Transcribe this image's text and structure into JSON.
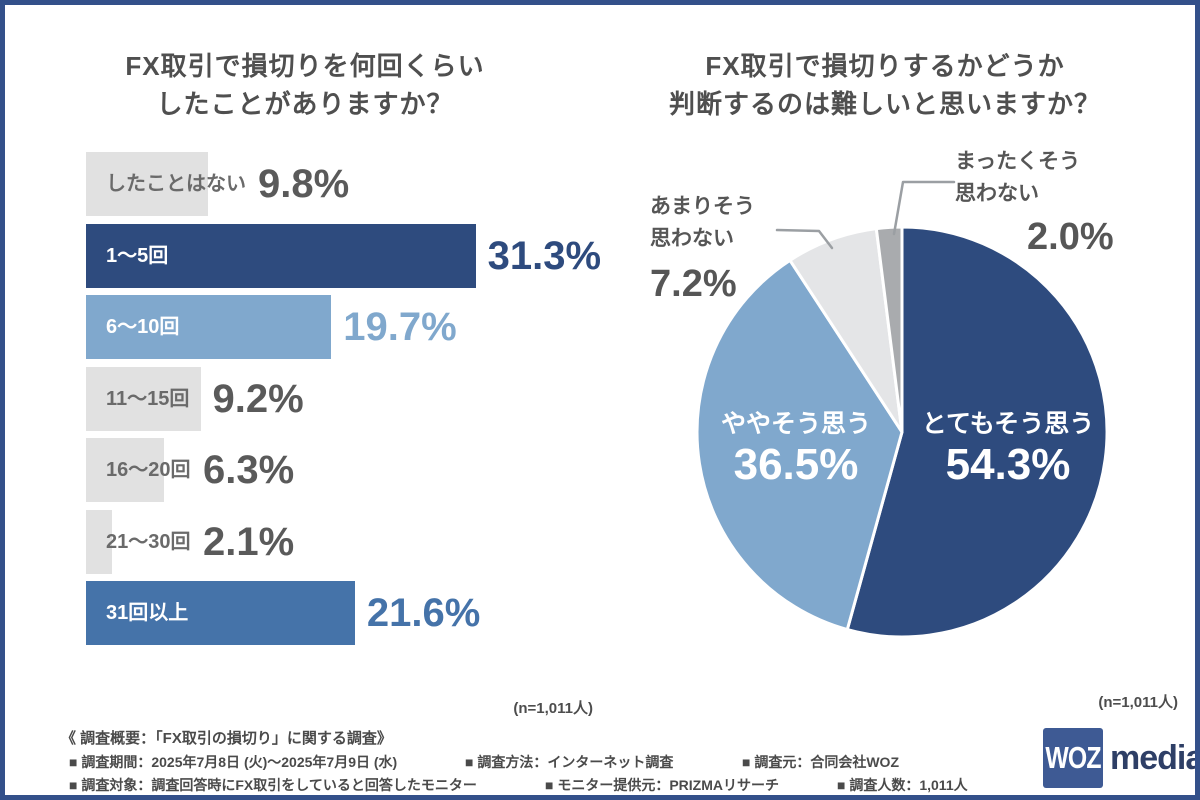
{
  "card": {
    "border_color": "#33508a",
    "background": "#ffffff"
  },
  "chart_data": [
    {
      "type": "bar",
      "orientation": "horizontal",
      "title_lines": [
        "FX取引で損切りを何回くらい",
        "したことがありますか？"
      ],
      "n_label": "(n=1,011人)",
      "unit": "%",
      "xlim": [
        0,
        40
      ],
      "bars": [
        {
          "label": "したことはない",
          "value": 9.8,
          "display": "9.8%",
          "bar_color": "#e1e1e1",
          "label_color": "#6a6a6a",
          "value_color": "#5a5a5a"
        },
        {
          "label": "1〜5回",
          "value": 31.3,
          "display": "31.3%",
          "bar_color": "#2e4b7e",
          "label_color": "#ffffff",
          "value_color": "#2e4b7e"
        },
        {
          "label": "6〜10回",
          "value": 19.7,
          "display": "19.7%",
          "bar_color": "#80a8cd",
          "label_color": "#ffffff",
          "value_color": "#80a8cd"
        },
        {
          "label": "11〜15回",
          "value": 9.2,
          "display": "9.2%",
          "bar_color": "#e1e1e1",
          "label_color": "#6a6a6a",
          "value_color": "#5a5a5a"
        },
        {
          "label": "16〜20回",
          "value": 6.3,
          "display": "6.3%",
          "bar_color": "#e1e1e1",
          "label_color": "#6a6a6a",
          "value_color": "#5a5a5a"
        },
        {
          "label": "21〜30回",
          "value": 2.1,
          "display": "2.1%",
          "bar_color": "#e1e1e1",
          "label_color": "#6a6a6a",
          "value_color": "#5a5a5a"
        },
        {
          "label": "31回以上",
          "value": 21.6,
          "display": "21.6%",
          "bar_color": "#4573a9",
          "label_color": "#ffffff",
          "value_color": "#4573a9"
        }
      ]
    },
    {
      "type": "pie",
      "title_lines": [
        "FX取引で損切りするかどうか",
        "判断するのは難しいと思いますか？"
      ],
      "n_label": "(n=1,011人)",
      "start": "top",
      "direction": "clockwise",
      "slices": [
        {
          "label": "とてもそう思う",
          "value": 54.3,
          "display": "54.3%",
          "color": "#2e4b7e",
          "label_pos": "inside"
        },
        {
          "label": "ややそう思う",
          "value": 36.5,
          "display": "36.5%",
          "color": "#80a8cd",
          "label_pos": "inside"
        },
        {
          "label": "あまりそう思わない",
          "label_lines": [
            "あまりそう",
            "思わない"
          ],
          "value": 7.2,
          "display": "7.2%",
          "color": "#e4e5e7",
          "label_pos": "outside"
        },
        {
          "label": "まったくそう思わない",
          "label_lines": [
            "まったくそう",
            "思わない"
          ],
          "value": 2.0,
          "display": "2.0%",
          "color": "#a9abae",
          "label_pos": "outside"
        }
      ]
    }
  ],
  "footer": {
    "overview": "《 調査概要：「FX取引の損切り」に関する調査》",
    "line1": [
      "■ 調査期間：2025年7月8日 (火)〜2025年7月9日 (水)",
      "■ 調査方法：インターネット調査",
      "■ 調査元：合同会社WOZ"
    ],
    "line2": [
      "■ 調査対象：調査回答時にFX取引をしていると回答したモニター",
      "■ モニター提供元：PRIZMAリサーチ",
      "■ 調査人数：1,011人"
    ]
  },
  "logo": {
    "square_text": "WOZ",
    "suffix": "media",
    "square_color": "#3e5a94",
    "suffix_color": "#2e3f66"
  }
}
